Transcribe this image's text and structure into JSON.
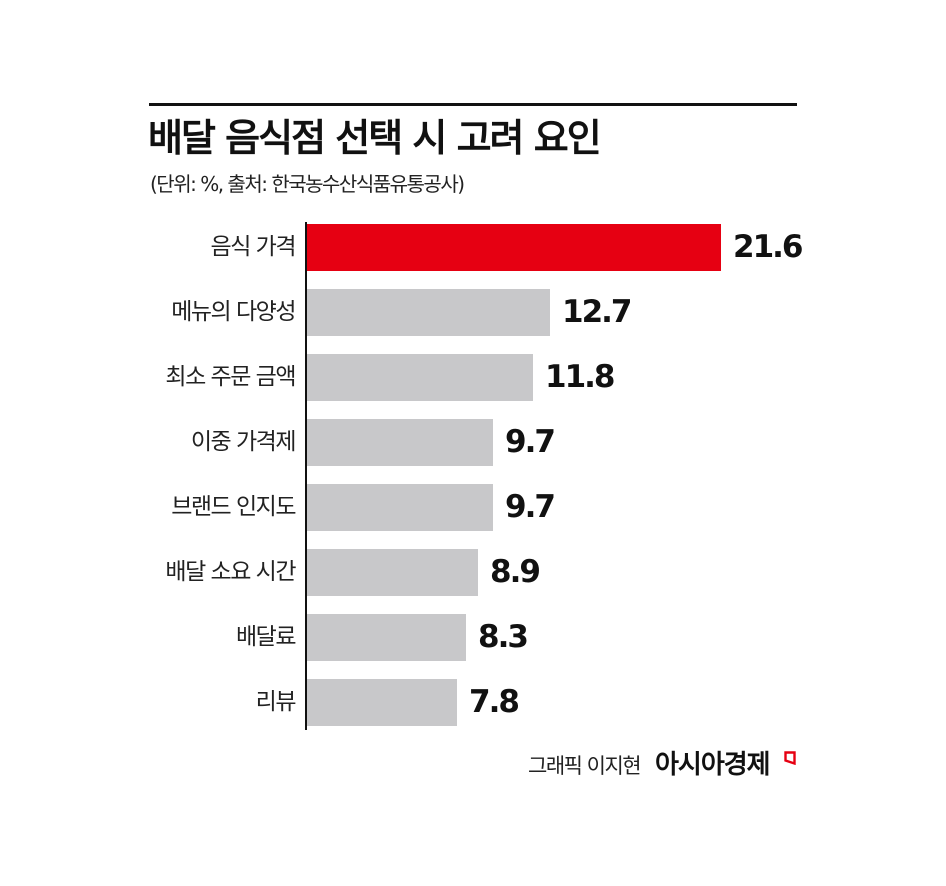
{
  "header": {
    "title": "배달 음식점 선택 시 고려 요인",
    "subtitle": "(단위: %, 출처: 한국농수산식품유통공사)"
  },
  "footer": {
    "credit": "그래픽 이지현",
    "brand": "아시아경제",
    "brand_mark_icon": "red-corner-mark"
  },
  "colors": {
    "highlight": "#e60012",
    "bar": "#c8c8ca",
    "axis": "#111111"
  },
  "chart_data": {
    "type": "bar",
    "orientation": "horizontal",
    "title": "배달 음식점 선택 시 고려 요인",
    "subtitle": "(단위: %, 출처: 한국농수산식품유통공사)",
    "xlabel": "",
    "ylabel": "",
    "unit": "%",
    "categories": [
      "음식 가격",
      "메뉴의 다양성",
      "최소 주문 금액",
      "이중 가격제",
      "브랜드 인지도",
      "배달 소요 시간",
      "배달료",
      "리뷰"
    ],
    "values": [
      21.6,
      12.7,
      11.8,
      9.7,
      9.7,
      8.9,
      8.3,
      7.8
    ],
    "value_labels": [
      "21.6",
      "12.7",
      "11.8",
      "9.7",
      "9.7",
      "8.9",
      "8.3",
      "7.8"
    ],
    "highlight_index": 0,
    "xlim": [
      0,
      21.6
    ],
    "grid": false,
    "legend": "none",
    "source": "한국농수산식품유통공사"
  }
}
